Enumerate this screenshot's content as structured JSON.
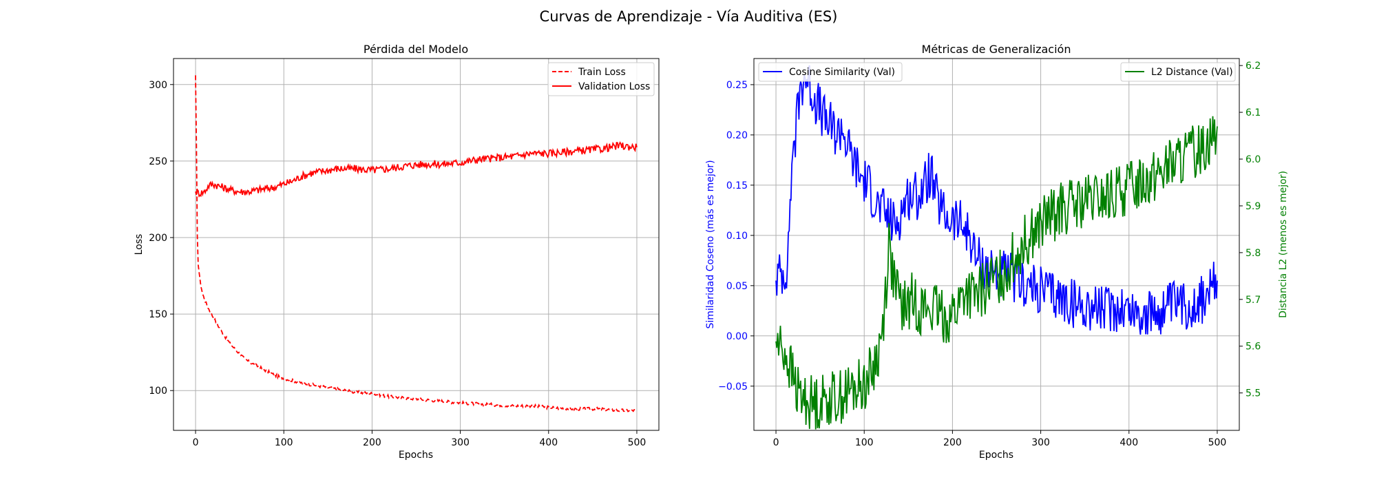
{
  "suptitle": "Curvas de Aprendizaje - Vía Auditiva (ES)",
  "colors": {
    "train": "#ff0000",
    "validation": "#ff0000",
    "cosine": "#0000ff",
    "l2": "#008000",
    "grid": "#b0b0b0",
    "axis": "#000000"
  },
  "chart_data": [
    {
      "type": "line",
      "title": "Pérdida del Modelo",
      "xlabel": "Epochs",
      "ylabel": "Loss",
      "xlim": [
        -25,
        525
      ],
      "ylim": [
        74,
        317
      ],
      "xticks": [
        0,
        100,
        200,
        300,
        400,
        500
      ],
      "yticks": [
        100,
        150,
        200,
        250,
        300
      ],
      "grid": true,
      "legend_position": "upper right",
      "series": [
        {
          "name": "Train Loss",
          "style": "dashed",
          "points": [
            [
              0,
              306
            ],
            [
              1,
              260
            ],
            [
              2,
              200
            ],
            [
              3,
              183
            ],
            [
              5,
              172
            ],
            [
              8,
              163
            ],
            [
              12,
              157
            ],
            [
              16,
              152
            ],
            [
              20,
              148
            ],
            [
              25,
              143
            ],
            [
              30,
              138
            ],
            [
              35,
              134
            ],
            [
              40,
              130
            ],
            [
              45,
              127
            ],
            [
              50,
              124
            ],
            [
              55,
              121
            ],
            [
              60,
              119
            ],
            [
              70,
              116
            ],
            [
              80,
              113
            ],
            [
              90,
              110
            ],
            [
              100,
              108
            ],
            [
              120,
              105
            ],
            [
              140,
              103
            ],
            [
              160,
              101
            ],
            [
              180,
              99
            ],
            [
              200,
              98
            ],
            [
              220,
              96
            ],
            [
              240,
              95
            ],
            [
              260,
              94
            ],
            [
              280,
              93
            ],
            [
              300,
              92
            ],
            [
              330,
              91
            ],
            [
              360,
              90
            ],
            [
              380,
              90
            ],
            [
              400,
              89
            ],
            [
              430,
              88
            ],
            [
              460,
              88
            ],
            [
              480,
              87
            ],
            [
              500,
              87
            ]
          ]
        },
        {
          "name": "Validation Loss",
          "style": "solid",
          "points": [
            [
              0,
              230
            ],
            [
              5,
              229
            ],
            [
              10,
              230
            ],
            [
              15,
              234
            ],
            [
              20,
              235
            ],
            [
              25,
              234
            ],
            [
              30,
              233
            ],
            [
              40,
              231
            ],
            [
              50,
              230
            ],
            [
              60,
              230
            ],
            [
              70,
              231
            ],
            [
              80,
              232
            ],
            [
              90,
              233
            ],
            [
              100,
              235
            ],
            [
              110,
              237
            ],
            [
              120,
              240
            ],
            [
              130,
              242
            ],
            [
              140,
              243
            ],
            [
              150,
              244
            ],
            [
              160,
              245
            ],
            [
              180,
              245
            ],
            [
              200,
              244
            ],
            [
              220,
              245
            ],
            [
              240,
              247
            ],
            [
              260,
              248
            ],
            [
              280,
              248
            ],
            [
              300,
              249
            ],
            [
              320,
              251
            ],
            [
              340,
              252
            ],
            [
              360,
              253
            ],
            [
              380,
              255
            ],
            [
              400,
              255
            ],
            [
              420,
              256
            ],
            [
              440,
              257
            ],
            [
              460,
              258
            ],
            [
              480,
              260
            ],
            [
              500,
              259
            ]
          ]
        }
      ]
    },
    {
      "type": "line",
      "title": "Métricas de Generalización",
      "xlabel": "Epochs",
      "ylabel": "Similaridad Coseno (más es mejor)",
      "y2label": "Distancia L2 (menos es mejor)",
      "xlim": [
        -25,
        525
      ],
      "ylim": [
        -0.094,
        0.276
      ],
      "y2lim": [
        5.42,
        6.215
      ],
      "xticks": [
        0,
        100,
        200,
        300,
        400,
        500
      ],
      "yticks": [
        -0.05,
        0.0,
        0.05,
        0.1,
        0.15,
        0.2,
        0.25
      ],
      "y2ticks": [
        5.5,
        5.6,
        5.7,
        5.8,
        5.9,
        6.0,
        6.1,
        6.2
      ],
      "grid": true,
      "legend_positions": {
        "left_axis": "upper left",
        "right_axis": "upper right"
      },
      "series": [
        {
          "name": "Cosine Similarity (Val)",
          "axis": "left",
          "points": [
            [
              0,
              0.055
            ],
            [
              3,
              0.06
            ],
            [
              6,
              0.063
            ],
            [
              9,
              0.064
            ],
            [
              12,
              0.07
            ],
            [
              14,
              0.08
            ],
            [
              16,
              0.14
            ],
            [
              18,
              0.16
            ],
            [
              20,
              0.2
            ],
            [
              22,
              0.195
            ],
            [
              25,
              0.23
            ],
            [
              28,
              0.245
            ],
            [
              32,
              0.26
            ],
            [
              36,
              0.255
            ],
            [
              40,
              0.245
            ],
            [
              45,
              0.235
            ],
            [
              50,
              0.225
            ],
            [
              55,
              0.215
            ],
            [
              60,
              0.21
            ],
            [
              65,
              0.205
            ],
            [
              70,
              0.2
            ],
            [
              75,
              0.21
            ],
            [
              80,
              0.19
            ],
            [
              85,
              0.18
            ],
            [
              90,
              0.17
            ],
            [
              95,
              0.16
            ],
            [
              100,
              0.155
            ],
            [
              105,
              0.15
            ],
            [
              110,
              0.14
            ],
            [
              115,
              0.13
            ],
            [
              120,
              0.125
            ],
            [
              125,
              0.12
            ],
            [
              130,
              0.115
            ],
            [
              135,
              0.11
            ],
            [
              140,
              0.12
            ],
            [
              150,
              0.14
            ],
            [
              160,
              0.14
            ],
            [
              170,
              0.15
            ],
            [
              175,
              0.165
            ],
            [
              180,
              0.14
            ],
            [
              190,
              0.12
            ],
            [
              200,
              0.115
            ],
            [
              210,
              0.11
            ],
            [
              220,
              0.1
            ],
            [
              225,
              0.08
            ],
            [
              235,
              0.07
            ],
            [
              245,
              0.065
            ],
            [
              255,
              0.06
            ],
            [
              265,
              0.06
            ],
            [
              275,
              0.055
            ],
            [
              285,
              0.05
            ],
            [
              295,
              0.045
            ],
            [
              305,
              0.045
            ],
            [
              315,
              0.04
            ],
            [
              330,
              0.035
            ],
            [
              345,
              0.03
            ],
            [
              360,
              0.03
            ],
            [
              375,
              0.025
            ],
            [
              390,
              0.03
            ],
            [
              405,
              0.025
            ],
            [
              420,
              0.02
            ],
            [
              435,
              0.025
            ],
            [
              450,
              0.03
            ],
            [
              465,
              0.03
            ],
            [
              480,
              0.035
            ],
            [
              490,
              0.04
            ],
            [
              500,
              0.055
            ]
          ]
        },
        {
          "name": "L2 Distance (Val)",
          "axis": "right",
          "points": [
            [
              0,
              5.61
            ],
            [
              5,
              5.6
            ],
            [
              10,
              5.59
            ],
            [
              15,
              5.56
            ],
            [
              20,
              5.53
            ],
            [
              25,
              5.5
            ],
            [
              30,
              5.49
            ],
            [
              40,
              5.48
            ],
            [
              50,
              5.48
            ],
            [
              60,
              5.49
            ],
            [
              70,
              5.49
            ],
            [
              80,
              5.5
            ],
            [
              90,
              5.51
            ],
            [
              100,
              5.52
            ],
            [
              110,
              5.55
            ],
            [
              115,
              5.58
            ],
            [
              120,
              5.62
            ],
            [
              125,
              5.74
            ],
            [
              128,
              5.82
            ],
            [
              135,
              5.72
            ],
            [
              145,
              5.68
            ],
            [
              155,
              5.7
            ],
            [
              165,
              5.68
            ],
            [
              175,
              5.68
            ],
            [
              185,
              5.67
            ],
            [
              195,
              5.66
            ],
            [
              205,
              5.68
            ],
            [
              215,
              5.72
            ],
            [
              225,
              5.7
            ],
            [
              240,
              5.73
            ],
            [
              260,
              5.76
            ],
            [
              280,
              5.82
            ],
            [
              300,
              5.86
            ],
            [
              320,
              5.89
            ],
            [
              340,
              5.9
            ],
            [
              360,
              5.91
            ],
            [
              380,
              5.92
            ],
            [
              400,
              5.94
            ],
            [
              420,
              5.96
            ],
            [
              440,
              5.98
            ],
            [
              460,
              6.0
            ],
            [
              480,
              6.02
            ],
            [
              500,
              6.07
            ]
          ]
        }
      ]
    }
  ]
}
